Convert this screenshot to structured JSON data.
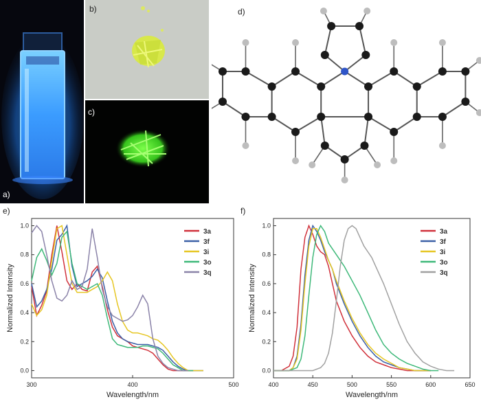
{
  "panels": {
    "a": {
      "label": "a)"
    },
    "b": {
      "label": "b)"
    },
    "c": {
      "label": "c)"
    },
    "d": {
      "label": "d)"
    },
    "e": {
      "label": "e)"
    },
    "f": {
      "label": "f)"
    }
  },
  "colors": {
    "3a": "#d0303a",
    "3f": "#3a5fa6",
    "3i": "#e6c622",
    "3o": "#3cb878",
    "3q": "#8a82a8",
    "3q_emission": "#a0a0a0",
    "atom_carbon": "#1a1a1a",
    "atom_nitrogen": "#2f55c8",
    "atom_hydrogen": "#bdbdbd",
    "cuvette_glow": "#3fa8ff",
    "crystal_yellow": "#d8e84a",
    "crystal_green": "#4fe22e"
  },
  "chart_data": [
    {
      "type": "line",
      "panel": "e",
      "xlabel": "Wavelength/nm",
      "ylabel": "Normalized Intensity",
      "xlim": [
        300,
        500
      ],
      "ylim": [
        -0.05,
        1.05
      ],
      "xticks": [
        "300",
        "400",
        "500"
      ],
      "yticks": [
        "0.0",
        "0.2",
        "0.4",
        "0.6",
        "0.8",
        "1.0"
      ],
      "legend_position": "top-right",
      "series": [
        {
          "name": "3a",
          "x": [
            300,
            305,
            310,
            315,
            320,
            325,
            330,
            335,
            340,
            345,
            350,
            355,
            360,
            365,
            370,
            375,
            380,
            385,
            390,
            395,
            400,
            405,
            410,
            415,
            420,
            425,
            430,
            435,
            440,
            445,
            450,
            455,
            460
          ],
          "y": [
            0.58,
            0.38,
            0.45,
            0.55,
            0.8,
            1.0,
            0.82,
            0.62,
            0.56,
            0.6,
            0.56,
            0.55,
            0.68,
            0.72,
            0.58,
            0.42,
            0.3,
            0.24,
            0.22,
            0.2,
            0.17,
            0.16,
            0.15,
            0.14,
            0.12,
            0.08,
            0.04,
            0.01,
            0.0,
            0.0,
            0.0,
            0.0,
            0.0
          ]
        },
        {
          "name": "3f",
          "x": [
            300,
            305,
            310,
            315,
            320,
            325,
            330,
            335,
            340,
            345,
            350,
            355,
            360,
            365,
            370,
            375,
            380,
            385,
            390,
            395,
            400,
            405,
            410,
            415,
            420,
            425,
            430,
            435,
            440,
            445,
            450,
            455,
            460,
            465,
            470
          ],
          "y": [
            0.6,
            0.44,
            0.48,
            0.56,
            0.7,
            0.9,
            0.94,
            1.0,
            0.72,
            0.58,
            0.6,
            0.62,
            0.65,
            0.7,
            0.64,
            0.48,
            0.34,
            0.26,
            0.22,
            0.2,
            0.19,
            0.18,
            0.18,
            0.18,
            0.17,
            0.16,
            0.14,
            0.1,
            0.06,
            0.03,
            0.01,
            0.0,
            0.0,
            0.0,
            0.0
          ]
        },
        {
          "name": "3i",
          "x": [
            300,
            305,
            310,
            315,
            320,
            325,
            330,
            335,
            340,
            345,
            350,
            355,
            360,
            365,
            370,
            375,
            380,
            385,
            390,
            395,
            400,
            405,
            410,
            415,
            420,
            425,
            430,
            435,
            440,
            445,
            450,
            455,
            460,
            465,
            470
          ],
          "y": [
            0.46,
            0.38,
            0.42,
            0.52,
            0.76,
            0.98,
            1.0,
            0.8,
            0.6,
            0.54,
            0.54,
            0.54,
            0.56,
            0.58,
            0.62,
            0.68,
            0.62,
            0.46,
            0.34,
            0.28,
            0.26,
            0.26,
            0.25,
            0.24,
            0.22,
            0.21,
            0.18,
            0.14,
            0.09,
            0.05,
            0.02,
            0.0,
            0.0,
            0.0,
            0.0
          ]
        },
        {
          "name": "3o",
          "x": [
            300,
            305,
            310,
            315,
            320,
            325,
            330,
            335,
            340,
            345,
            350,
            355,
            360,
            365,
            370,
            375,
            380,
            385,
            390,
            395,
            400,
            405,
            410,
            415,
            420,
            425,
            430,
            435,
            440,
            445,
            450,
            455,
            460
          ],
          "y": [
            0.62,
            0.78,
            0.84,
            0.76,
            0.66,
            0.74,
            0.92,
            0.96,
            0.74,
            0.6,
            0.58,
            0.56,
            0.58,
            0.6,
            0.52,
            0.36,
            0.22,
            0.18,
            0.17,
            0.16,
            0.16,
            0.16,
            0.17,
            0.17,
            0.16,
            0.15,
            0.12,
            0.08,
            0.04,
            0.02,
            0.0,
            0.0,
            0.0
          ]
        },
        {
          "name": "3q",
          "x": [
            300,
            305,
            310,
            315,
            320,
            325,
            330,
            335,
            340,
            345,
            350,
            355,
            360,
            365,
            370,
            375,
            380,
            385,
            390,
            395,
            400,
            405,
            410,
            415,
            420,
            425,
            430,
            435,
            440,
            445,
            450,
            455
          ],
          "y": [
            0.95,
            1.0,
            0.96,
            0.8,
            0.62,
            0.5,
            0.48,
            0.52,
            0.62,
            0.56,
            0.58,
            0.7,
            0.98,
            0.78,
            0.56,
            0.44,
            0.38,
            0.36,
            0.34,
            0.35,
            0.38,
            0.44,
            0.52,
            0.46,
            0.22,
            0.1,
            0.05,
            0.02,
            0.01,
            0.0,
            0.0,
            0.0
          ]
        }
      ]
    },
    {
      "type": "line",
      "panel": "f",
      "xlabel": "Wavelength/nm",
      "ylabel": "Normalized Intensity",
      "xlim": [
        400,
        650
      ],
      "ylim": [
        -0.05,
        1.05
      ],
      "xticks": [
        "400",
        "450",
        "500",
        "550",
        "600",
        "650"
      ],
      "yticks": [
        "0.0",
        "0.2",
        "0.4",
        "0.6",
        "0.8",
        "1.0"
      ],
      "legend_position": "top-right",
      "series": [
        {
          "name": "3a",
          "x": [
            400,
            410,
            420,
            425,
            430,
            435,
            440,
            445,
            450,
            455,
            460,
            465,
            470,
            475,
            480,
            490,
            500,
            510,
            520,
            530,
            540,
            550,
            560,
            570,
            580,
            590,
            600
          ],
          "y": [
            0.0,
            0.0,
            0.03,
            0.1,
            0.3,
            0.7,
            0.92,
            1.0,
            0.94,
            0.86,
            0.82,
            0.8,
            0.72,
            0.6,
            0.48,
            0.34,
            0.24,
            0.16,
            0.1,
            0.06,
            0.04,
            0.02,
            0.01,
            0.0,
            0.0,
            0.0,
            0.0
          ]
        },
        {
          "name": "3f",
          "x": [
            400,
            410,
            420,
            425,
            430,
            435,
            440,
            445,
            450,
            455,
            460,
            465,
            470,
            475,
            480,
            490,
            500,
            510,
            520,
            530,
            540,
            550,
            560,
            570,
            580,
            590,
            600
          ],
          "y": [
            0.0,
            0.0,
            0.0,
            0.02,
            0.1,
            0.32,
            0.66,
            0.9,
            1.0,
            0.96,
            0.9,
            0.82,
            0.76,
            0.7,
            0.6,
            0.46,
            0.34,
            0.24,
            0.16,
            0.1,
            0.06,
            0.04,
            0.02,
            0.01,
            0.0,
            0.0,
            0.0
          ]
        },
        {
          "name": "3i",
          "x": [
            400,
            410,
            420,
            425,
            430,
            435,
            440,
            445,
            450,
            455,
            460,
            465,
            470,
            475,
            480,
            490,
            500,
            510,
            520,
            530,
            540,
            550,
            560,
            570,
            580,
            590,
            600
          ],
          "y": [
            0.0,
            0.0,
            0.0,
            0.02,
            0.08,
            0.28,
            0.6,
            0.86,
            0.98,
            0.98,
            0.92,
            0.84,
            0.76,
            0.7,
            0.62,
            0.48,
            0.36,
            0.26,
            0.18,
            0.12,
            0.08,
            0.05,
            0.02,
            0.01,
            0.0,
            0.0,
            0.0
          ]
        },
        {
          "name": "3o",
          "x": [
            400,
            420,
            430,
            435,
            440,
            445,
            450,
            455,
            460,
            465,
            470,
            475,
            480,
            490,
            500,
            510,
            520,
            530,
            540,
            550,
            560,
            570,
            580,
            590,
            600,
            610
          ],
          "y": [
            0.0,
            0.0,
            0.02,
            0.08,
            0.24,
            0.52,
            0.78,
            0.94,
            1.0,
            0.96,
            0.88,
            0.84,
            0.8,
            0.72,
            0.62,
            0.52,
            0.4,
            0.28,
            0.18,
            0.12,
            0.08,
            0.05,
            0.03,
            0.01,
            0.0,
            0.0
          ]
        },
        {
          "name": "3q",
          "x": [
            400,
            440,
            450,
            460,
            465,
            470,
            475,
            480,
            485,
            490,
            495,
            500,
            505,
            510,
            515,
            520,
            525,
            530,
            540,
            550,
            560,
            570,
            580,
            590,
            600,
            610,
            620,
            630
          ],
          "y": [
            0.0,
            0.0,
            0.0,
            0.02,
            0.05,
            0.12,
            0.26,
            0.48,
            0.72,
            0.9,
            0.98,
            1.0,
            0.98,
            0.92,
            0.86,
            0.82,
            0.78,
            0.72,
            0.6,
            0.46,
            0.32,
            0.2,
            0.12,
            0.06,
            0.03,
            0.01,
            0.0,
            0.0
          ]
        }
      ]
    }
  ]
}
